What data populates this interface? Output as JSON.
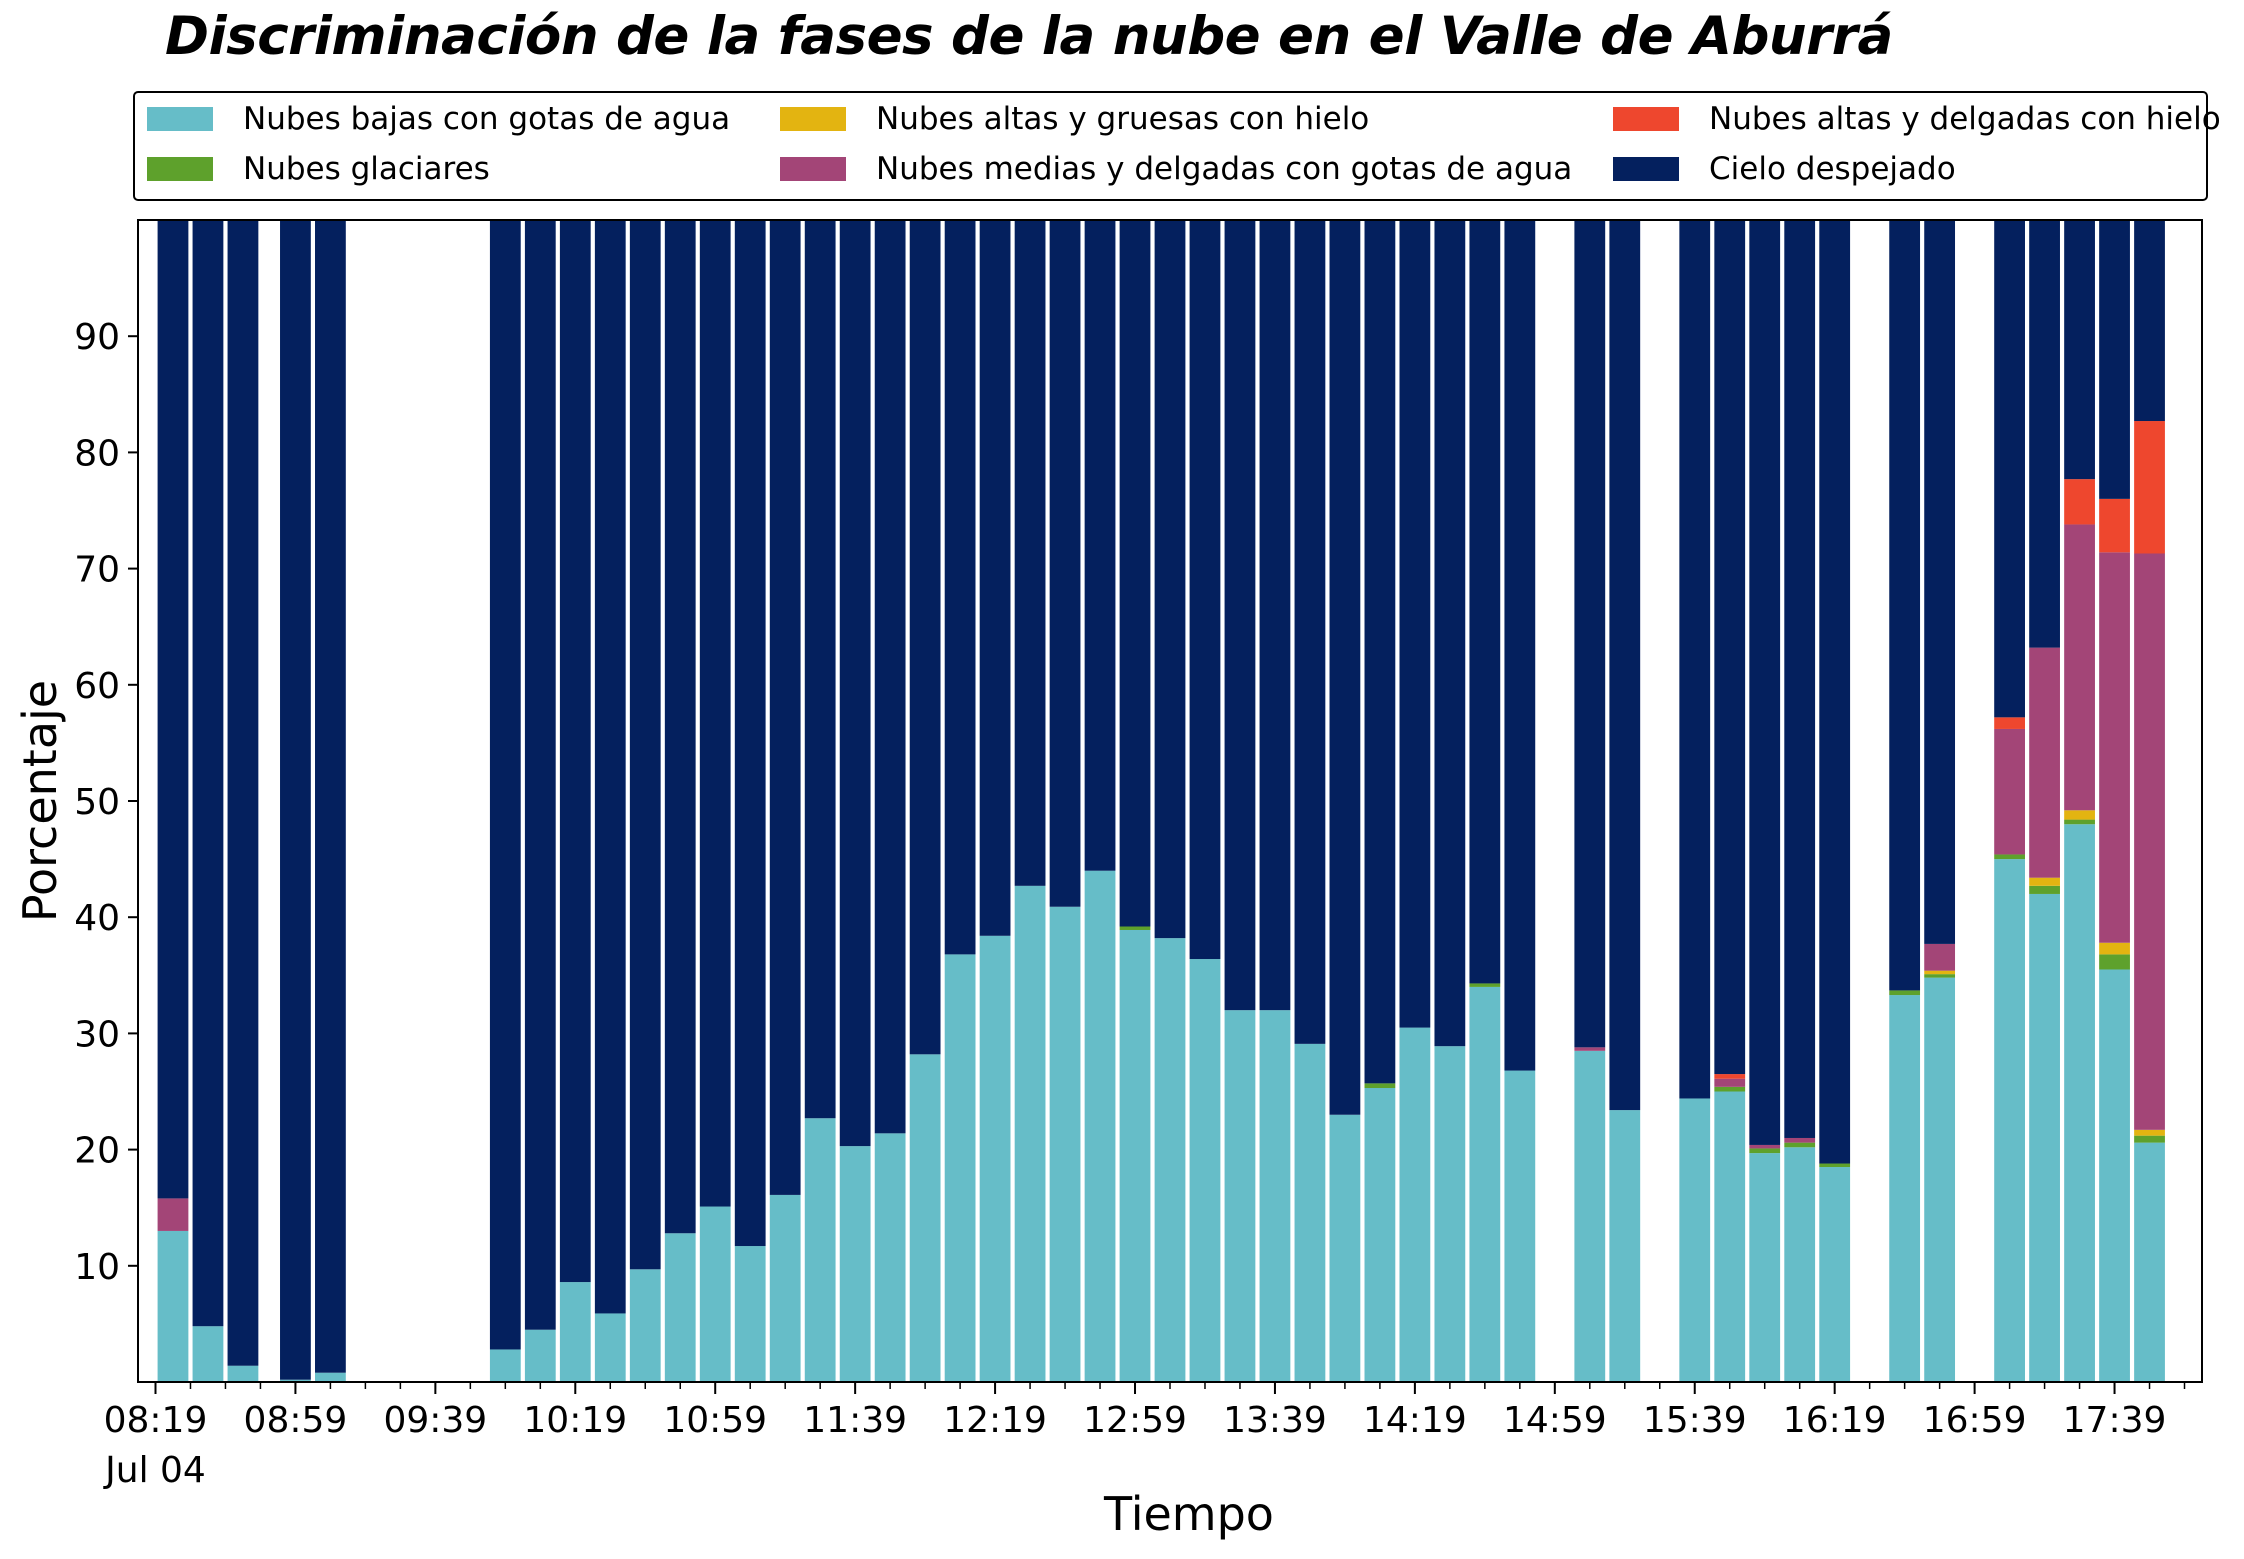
{
  "chart_data": {
    "type": "bar",
    "stacked": true,
    "title": "Discriminación de la fases de la nube en el Valle de Aburrá",
    "xlabel": "Tiempo",
    "ylabel": "Porcentaje",
    "ylim": [
      0,
      100
    ],
    "yticks": [
      10,
      20,
      30,
      40,
      50,
      60,
      70,
      80,
      90
    ],
    "xlim": [
      "08:14",
      "18:04"
    ],
    "bar_width_minutes": 8.8,
    "xticks": [
      "08:19",
      "08:59",
      "09:39",
      "10:19",
      "10:59",
      "11:39",
      "12:19",
      "12:59",
      "13:39",
      "14:19",
      "14:59",
      "15:39",
      "16:19",
      "16:59",
      "17:39"
    ],
    "minor_tick_step_minutes": 10,
    "date_label": "Jul 04",
    "grid": false,
    "legend_position": "top",
    "legend_columns": 3,
    "x": [
      "08:24",
      "08:34",
      "08:44",
      "08:59",
      "09:09",
      "09:39",
      "09:59",
      "10:09",
      "10:19",
      "10:29",
      "10:39",
      "10:49",
      "10:59",
      "11:09",
      "11:19",
      "11:29",
      "11:39",
      "11:49",
      "11:59",
      "12:09",
      "12:19",
      "12:29",
      "12:39",
      "12:49",
      "12:59",
      "13:09",
      "13:19",
      "13:29",
      "13:39",
      "13:49",
      "13:59",
      "14:09",
      "14:19",
      "14:29",
      "14:39",
      "14:49",
      "15:09",
      "15:19",
      "15:39",
      "15:49",
      "15:59",
      "16:09",
      "16:19",
      "16:39",
      "16:49",
      "17:09",
      "17:19",
      "17:29",
      "17:39",
      "17:49"
    ],
    "series": [
      {
        "name": "Nubes bajas con gotas de agua",
        "color": "#66bdc8",
        "values": [
          13.0,
          4.8,
          1.4,
          0.2,
          0.8,
          0,
          2.8,
          4.5,
          8.6,
          5.9,
          9.7,
          12.8,
          15.1,
          11.7,
          16.1,
          22.7,
          20.3,
          21.4,
          28.2,
          36.8,
          38.4,
          42.7,
          40.9,
          44.0,
          38.9,
          38.2,
          36.4,
          32.0,
          32.0,
          29.1,
          23.0,
          25.3,
          30.5,
          28.9,
          34.0,
          26.8,
          28.5,
          23.4,
          24.4,
          25.0,
          19.7,
          20.2,
          18.5,
          33.3,
          34.8,
          45.0,
          42.0,
          48.0,
          35.5,
          20.6
        ]
      },
      {
        "name": "Nubes glaciares",
        "color": "#5ea12c",
        "values": [
          0,
          0,
          0,
          0,
          0,
          0,
          0,
          0,
          0,
          0,
          0,
          0,
          0,
          0,
          0,
          0,
          0,
          0,
          0,
          0,
          0,
          0,
          0,
          0,
          0.3,
          0,
          0,
          0,
          0,
          0,
          0,
          0.4,
          0,
          0,
          0.3,
          0,
          0,
          0,
          0,
          0.4,
          0.4,
          0.4,
          0.3,
          0.4,
          0.3,
          0.4,
          0.7,
          0.4,
          1.3,
          0.6
        ]
      },
      {
        "name": "Nubes altas y gruesas con hielo",
        "color": "#e3b411",
        "values": [
          0,
          0,
          0,
          0,
          0,
          0,
          0,
          0,
          0,
          0,
          0,
          0,
          0,
          0,
          0,
          0,
          0,
          0,
          0,
          0,
          0,
          0,
          0,
          0,
          0,
          0,
          0,
          0,
          0,
          0,
          0,
          0,
          0,
          0,
          0,
          0,
          0,
          0,
          0,
          0,
          0,
          0,
          0,
          0,
          0.3,
          0,
          0.7,
          0.8,
          1.0,
          0.5
        ]
      },
      {
        "name": "Nubes medias y delgadas con gotas de agua",
        "color": "#a34577",
        "values": [
          2.8,
          0,
          0,
          0,
          0,
          0,
          0,
          0,
          0,
          0,
          0,
          0,
          0,
          0,
          0,
          0,
          0,
          0,
          0,
          0,
          0,
          0,
          0,
          0,
          0,
          0,
          0,
          0,
          0,
          0,
          0,
          0,
          0,
          0,
          0,
          0,
          0.3,
          0,
          0,
          0.7,
          0.3,
          0.4,
          0,
          0,
          2.3,
          10.8,
          19.8,
          24.6,
          33.6,
          49.6
        ]
      },
      {
        "name": "Nubes altas y delgadas con hielo",
        "color": "#ee472e",
        "values": [
          0,
          0,
          0,
          0,
          0,
          0,
          0,
          0,
          0,
          0,
          0,
          0,
          0,
          0,
          0,
          0,
          0,
          0,
          0,
          0,
          0,
          0,
          0,
          0,
          0,
          0,
          0,
          0,
          0,
          0,
          0,
          0,
          0,
          0,
          0,
          0,
          0,
          0,
          0,
          0.4,
          0,
          0,
          0,
          0,
          0,
          1.0,
          0,
          3.9,
          4.6,
          11.4
        ]
      },
      {
        "name": "Cielo despejado",
        "color": "#04205e",
        "values": [
          84.2,
          95.2,
          98.6,
          99.8,
          99.2,
          0,
          97.2,
          95.5,
          91.4,
          94.1,
          90.3,
          87.2,
          84.9,
          88.3,
          83.9,
          77.3,
          79.7,
          78.6,
          71.8,
          63.2,
          61.6,
          57.3,
          59.1,
          56.0,
          60.8,
          61.8,
          63.6,
          68.0,
          68.0,
          70.9,
          77.0,
          74.3,
          69.5,
          71.1,
          65.7,
          73.2,
          71.2,
          76.6,
          75.6,
          73.5,
          79.6,
          79.0,
          81.2,
          66.3,
          62.3,
          42.8,
          36.8,
          22.3,
          24.0,
          17.3
        ]
      }
    ]
  }
}
